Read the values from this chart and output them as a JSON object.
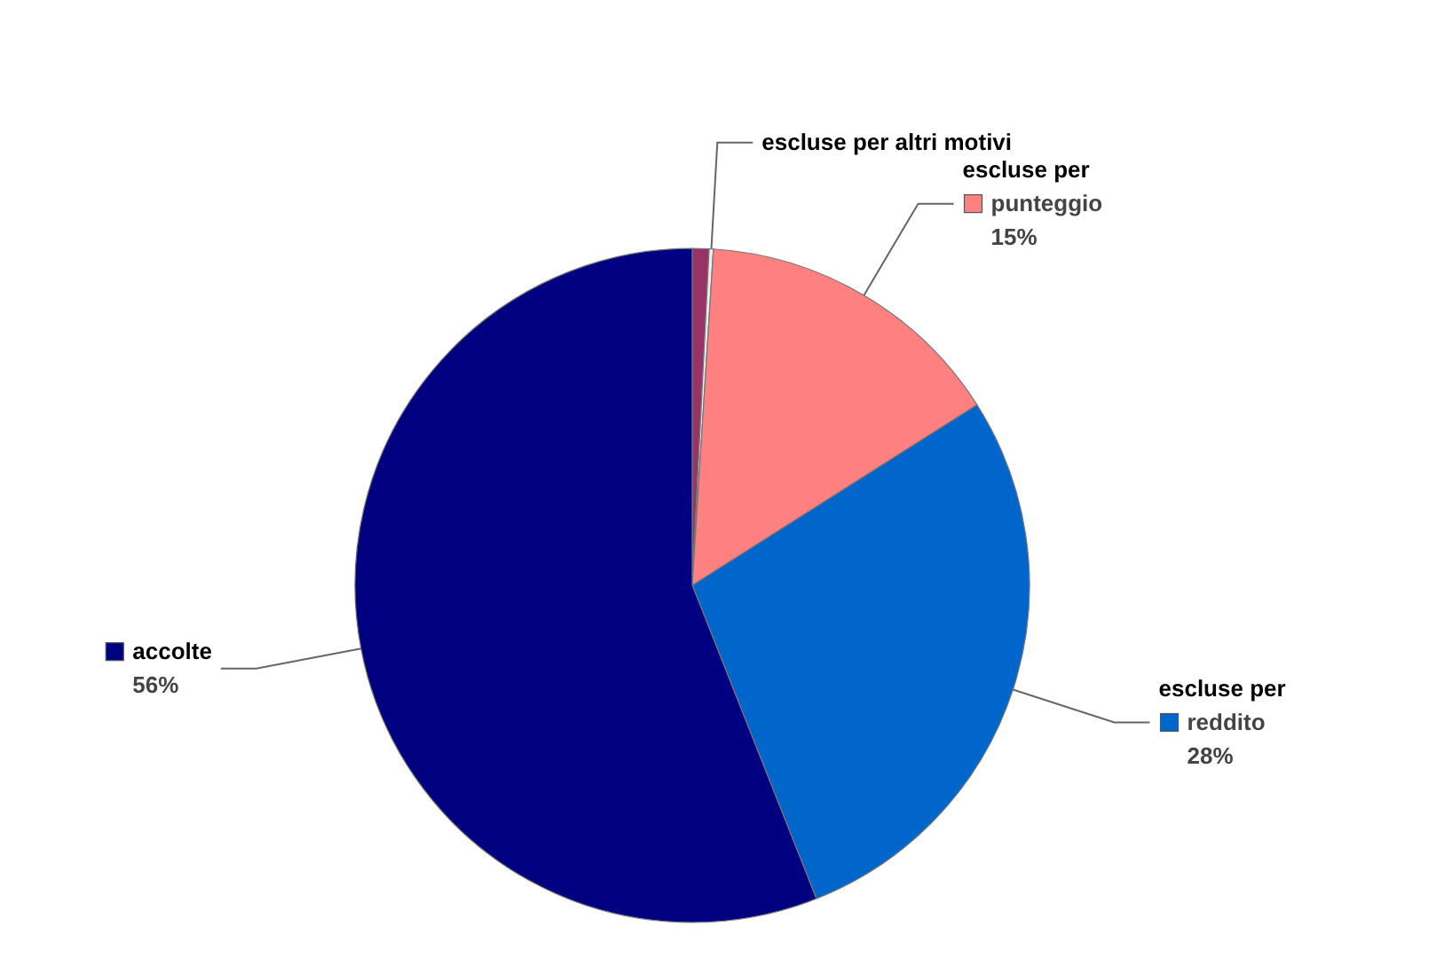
{
  "chart_data": {
    "type": "pie",
    "categories": [
      null,
      "escluse per altri motivi",
      "escluse per punteggio",
      "escluse per reddito",
      "accolte"
    ],
    "values": [
      0.8,
      0.2,
      15,
      28,
      56
    ],
    "colors": [
      "#993366",
      "#eeeeee",
      "#ff8080",
      "#0066cc",
      "#000080"
    ],
    "value_labels": [
      null,
      null,
      "15%",
      "28%",
      "56%"
    ]
  }
}
